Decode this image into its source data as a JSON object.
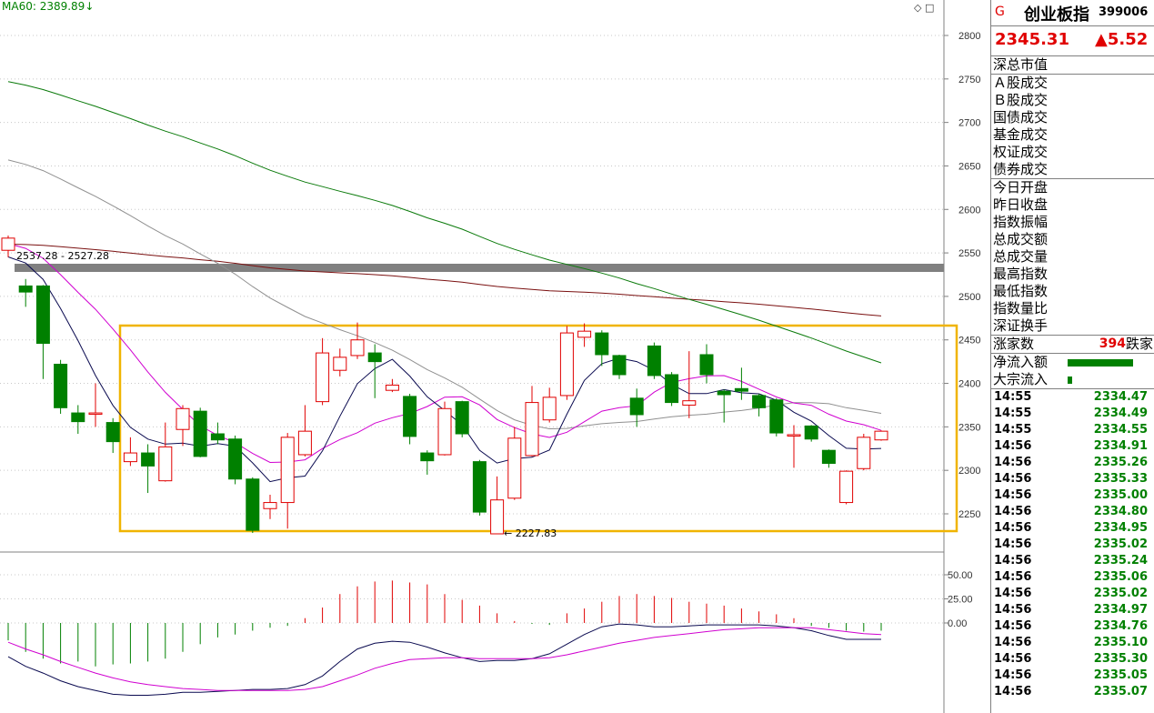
{
  "chart": {
    "ma_label": "MA60: 2389.89↓",
    "range_label": "2537.28 - 2527.28",
    "low_label": "← 2227.83",
    "icons": "◇ □",
    "price_axis": [
      "2800",
      "2750",
      "2700",
      "2650",
      "2600",
      "2550",
      "2500",
      "2450",
      "2400",
      "2350",
      "2300",
      "2250"
    ],
    "macd_axis": [
      "50.00",
      "25.00",
      "0.00"
    ],
    "colors": {
      "up": "#e00000",
      "down": "#008000",
      "box": "#f0b400",
      "band": "#808080"
    }
  },
  "chart_data": {
    "type": "candlestick",
    "ylim": [
      2210,
      2830
    ],
    "candles": [
      {
        "o": 2553,
        "c": 2567,
        "h": 2570,
        "l": 2545
      },
      {
        "o": 2512,
        "c": 2505,
        "h": 2520,
        "l": 2488
      },
      {
        "o": 2512,
        "c": 2446,
        "h": 2513,
        "l": 2405
      },
      {
        "o": 2422,
        "c": 2372,
        "h": 2427,
        "l": 2365
      },
      {
        "o": 2366,
        "c": 2356,
        "h": 2375,
        "l": 2342
      },
      {
        "o": 2366,
        "c": 2366,
        "h": 2400,
        "l": 2350
      },
      {
        "o": 2355,
        "c": 2333,
        "h": 2360,
        "l": 2320
      },
      {
        "o": 2310,
        "c": 2320,
        "h": 2338,
        "l": 2305
      },
      {
        "o": 2320,
        "c": 2305,
        "h": 2330,
        "l": 2274
      },
      {
        "o": 2288,
        "c": 2327,
        "h": 2355,
        "l": 2287
      },
      {
        "o": 2347,
        "c": 2371,
        "h": 2375,
        "l": 2328
      },
      {
        "o": 2368,
        "c": 2316,
        "h": 2372,
        "l": 2315
      },
      {
        "o": 2342,
        "c": 2335,
        "h": 2355,
        "l": 2330
      },
      {
        "o": 2336,
        "c": 2290,
        "h": 2340,
        "l": 2284
      },
      {
        "o": 2290,
        "c": 2231,
        "h": 2292,
        "l": 2228
      },
      {
        "o": 2256,
        "c": 2263,
        "h": 2272,
        "l": 2244
      },
      {
        "o": 2263,
        "c": 2338,
        "h": 2343,
        "l": 2233
      },
      {
        "o": 2318,
        "c": 2345,
        "h": 2375,
        "l": 2316
      },
      {
        "o": 2379,
        "c": 2435,
        "h": 2452,
        "l": 2375
      },
      {
        "o": 2415,
        "c": 2430,
        "h": 2440,
        "l": 2408
      },
      {
        "o": 2432,
        "c": 2450,
        "h": 2470,
        "l": 2428
      },
      {
        "o": 2435,
        "c": 2425,
        "h": 2445,
        "l": 2383
      },
      {
        "o": 2392,
        "c": 2398,
        "h": 2405,
        "l": 2390
      },
      {
        "o": 2385,
        "c": 2339,
        "h": 2388,
        "l": 2330
      },
      {
        "o": 2320,
        "c": 2311,
        "h": 2323,
        "l": 2295
      },
      {
        "o": 2318,
        "c": 2371,
        "h": 2379,
        "l": 2317
      },
      {
        "o": 2379,
        "c": 2342,
        "h": 2380,
        "l": 2338
      },
      {
        "o": 2310,
        "c": 2252,
        "h": 2312,
        "l": 2248
      },
      {
        "o": 2227,
        "c": 2266,
        "h": 2293,
        "l": 2227
      },
      {
        "o": 2268,
        "c": 2337,
        "h": 2350,
        "l": 2266
      },
      {
        "o": 2317,
        "c": 2378,
        "h": 2397,
        "l": 2316
      },
      {
        "o": 2358,
        "c": 2384,
        "h": 2395,
        "l": 2355
      },
      {
        "o": 2386,
        "c": 2458,
        "h": 2466,
        "l": 2381
      },
      {
        "o": 2453,
        "c": 2460,
        "h": 2469,
        "l": 2442
      },
      {
        "o": 2458,
        "c": 2433,
        "h": 2461,
        "l": 2420
      },
      {
        "o": 2432,
        "c": 2410,
        "h": 2433,
        "l": 2405
      },
      {
        "o": 2383,
        "c": 2364,
        "h": 2394,
        "l": 2350
      },
      {
        "o": 2443,
        "c": 2409,
        "h": 2447,
        "l": 2405
      },
      {
        "o": 2410,
        "c": 2378,
        "h": 2413,
        "l": 2374
      },
      {
        "o": 2375,
        "c": 2380,
        "h": 2437,
        "l": 2360
      },
      {
        "o": 2433,
        "c": 2410,
        "h": 2445,
        "l": 2400
      },
      {
        "o": 2391,
        "c": 2387,
        "h": 2393,
        "l": 2355
      },
      {
        "o": 2394,
        "c": 2391,
        "h": 2418,
        "l": 2381
      },
      {
        "o": 2386,
        "c": 2372,
        "h": 2388,
        "l": 2362
      },
      {
        "o": 2381,
        "c": 2343,
        "h": 2383,
        "l": 2339
      },
      {
        "o": 2340,
        "c": 2341,
        "h": 2352,
        "l": 2303
      },
      {
        "o": 2351,
        "c": 2336,
        "h": 2352,
        "l": 2333
      },
      {
        "o": 2323,
        "c": 2308,
        "h": 2324,
        "l": 2303
      },
      {
        "o": 2263,
        "c": 2299,
        "h": 2300,
        "l": 2261
      },
      {
        "o": 2302,
        "c": 2338,
        "h": 2342,
        "l": 2300
      },
      {
        "o": 2335,
        "c": 2345,
        "h": 2346,
        "l": 2334
      }
    ],
    "macd_hist": [
      -18,
      -30,
      -37,
      -42,
      -40,
      -45,
      -43,
      -42,
      -40,
      -37,
      -30,
      -22,
      -15,
      -12,
      -8,
      -5,
      -3,
      5,
      16,
      30,
      38,
      43,
      44,
      42,
      40,
      30,
      24,
      18,
      10,
      2,
      -1,
      -2,
      10,
      15,
      22,
      28,
      30,
      28,
      26,
      22,
      20,
      18,
      15,
      12,
      9,
      5,
      -3,
      -5,
      -8,
      -9,
      -8
    ],
    "macd_dif": [
      -35,
      -45,
      -52,
      -60,
      -66,
      -70,
      -74,
      -75,
      -75,
      -74,
      -72,
      -72,
      -71,
      -70,
      -69,
      -69,
      -68,
      -64,
      -55,
      -40,
      -27,
      -21,
      -19,
      -20,
      -25,
      -31,
      -36,
      -40,
      -39,
      -39,
      -37,
      -32,
      -22,
      -12,
      -4,
      -1,
      -2,
      -4,
      -4,
      -3,
      -2,
      -2,
      -2,
      -2,
      -3,
      -5,
      -8,
      -13,
      -17,
      -17,
      -17
    ],
    "macd_dea": [
      -20,
      -27,
      -33,
      -40,
      -46,
      -52,
      -57,
      -61,
      -64,
      -66,
      -68,
      -69,
      -70,
      -70,
      -70,
      -70,
      -70,
      -69,
      -66,
      -60,
      -54,
      -47,
      -42,
      -38,
      -37,
      -36,
      -36,
      -37,
      -37,
      -37,
      -37,
      -36,
      -33,
      -29,
      -25,
      -21,
      -18,
      -15,
      -13,
      -11,
      -9,
      -7,
      -6,
      -5,
      -5,
      -5,
      -5,
      -7,
      -9,
      -11,
      -12
    ]
  },
  "panel": {
    "g": "G",
    "name": "创业板指",
    "code": "399006",
    "price": "2345.31",
    "change": "▲5.52",
    "section1": [
      "深总市值"
    ],
    "section2": [
      "Ａ股成交",
      "Ｂ股成交",
      "国债成交",
      "基金成交",
      "权证成交",
      "债券成交"
    ],
    "section3": [
      "今日开盘",
      "昨日收盘",
      "指数振幅",
      "总成交额",
      "总成交量",
      "最高指数",
      "最低指数",
      "指数量比",
      "深证换手"
    ],
    "rise_label": "涨家数",
    "rise_value": "394",
    "fall_label": "跌家",
    "flow1": "净流入额",
    "flow2": "大宗流入",
    "ticks": [
      {
        "t": "14:55",
        "p": "2334.47"
      },
      {
        "t": "14:55",
        "p": "2334.49"
      },
      {
        "t": "14:55",
        "p": "2334.55"
      },
      {
        "t": "14:56",
        "p": "2334.91"
      },
      {
        "t": "14:56",
        "p": "2335.26"
      },
      {
        "t": "14:56",
        "p": "2335.33"
      },
      {
        "t": "14:56",
        "p": "2335.00"
      },
      {
        "t": "14:56",
        "p": "2334.80"
      },
      {
        "t": "14:56",
        "p": "2334.95"
      },
      {
        "t": "14:56",
        "p": "2335.02"
      },
      {
        "t": "14:56",
        "p": "2335.24"
      },
      {
        "t": "14:56",
        "p": "2335.06"
      },
      {
        "t": "14:56",
        "p": "2335.02"
      },
      {
        "t": "14:56",
        "p": "2334.97"
      },
      {
        "t": "14:56",
        "p": "2334.76"
      },
      {
        "t": "14:56",
        "p": "2335.10"
      },
      {
        "t": "14:56",
        "p": "2335.30"
      },
      {
        "t": "14:56",
        "p": "2335.05"
      },
      {
        "t": "14:56",
        "p": "2335.07"
      }
    ]
  }
}
